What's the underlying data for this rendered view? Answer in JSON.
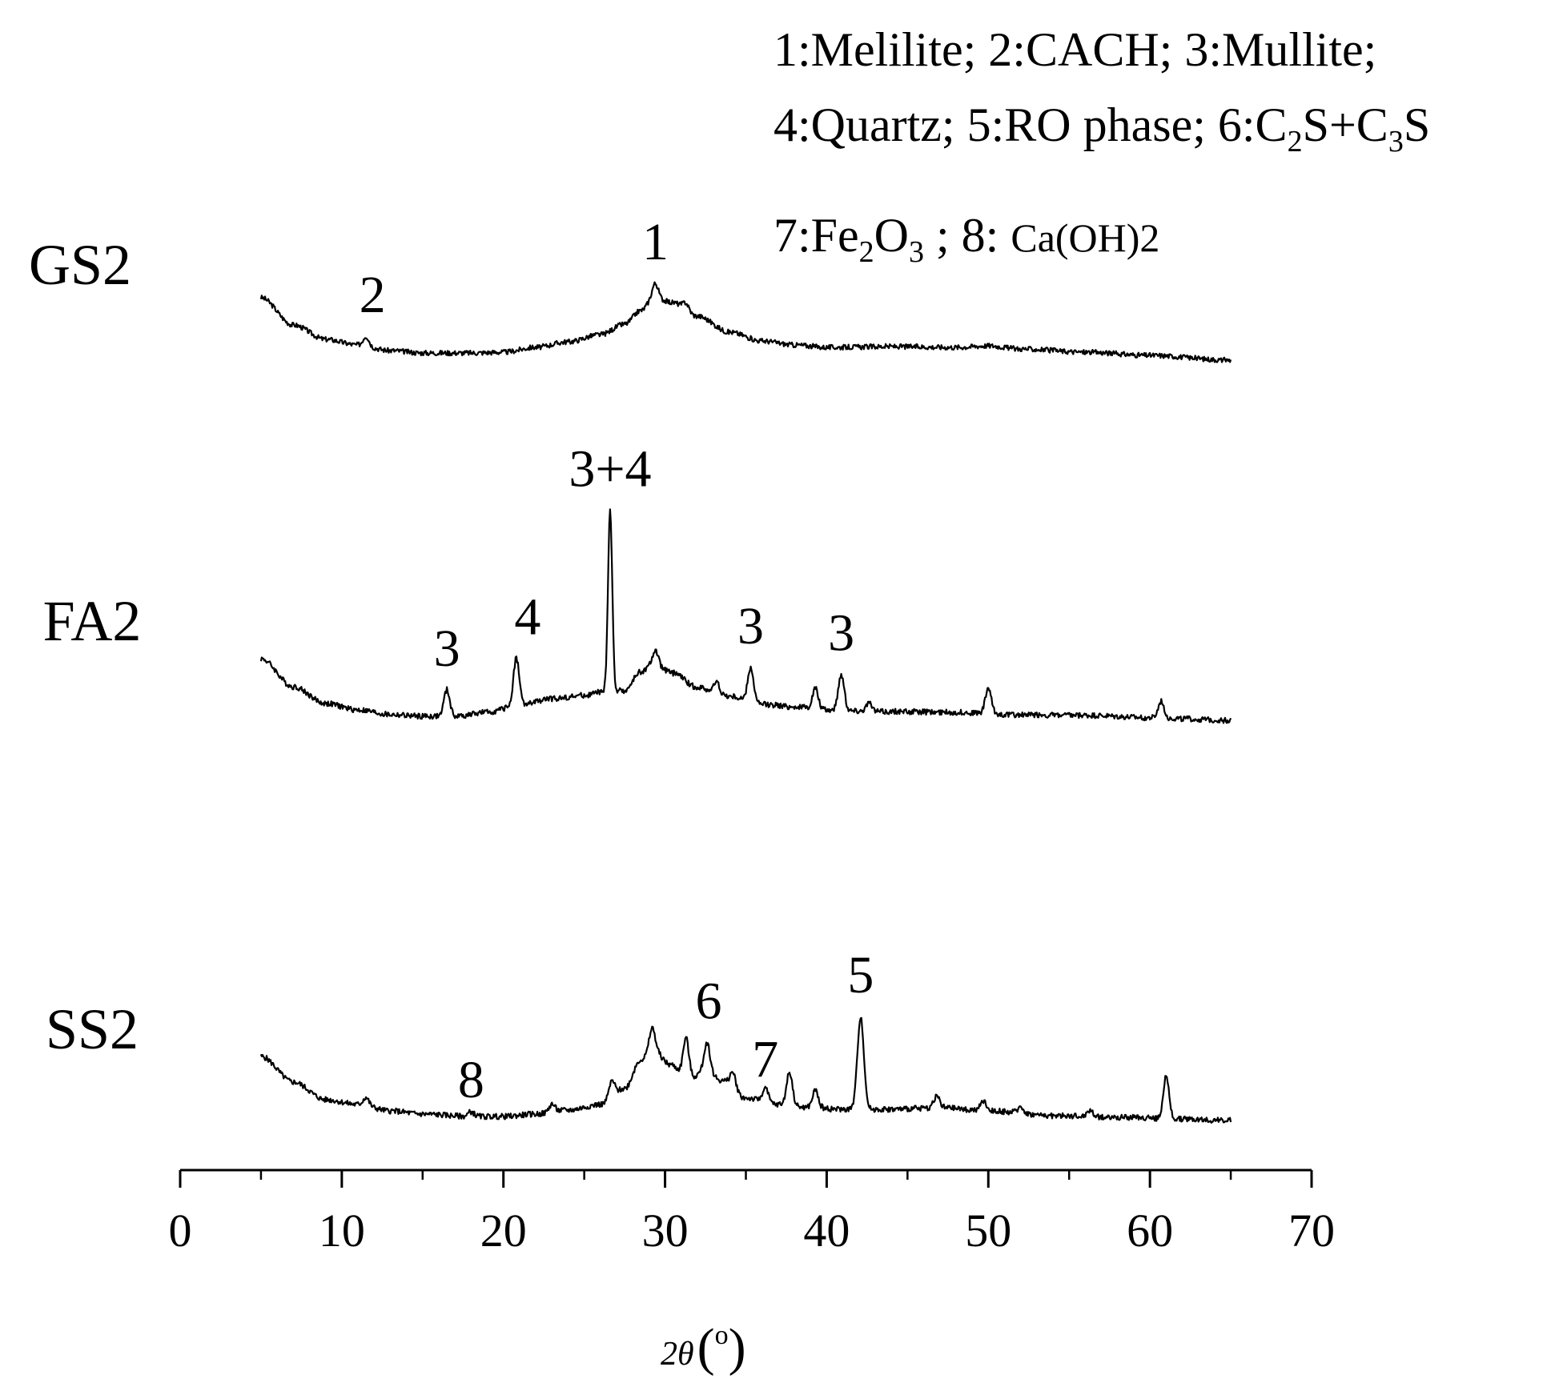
{
  "chart_data": {
    "type": "line",
    "title": "",
    "xlabel": "2θ(°)",
    "xlabel_parts": {
      "two": "2",
      "theta": "θ",
      "unit": "(",
      "degree": "o",
      "close": ")"
    },
    "ylabel": "",
    "xlim": [
      0,
      70
    ],
    "xticks": [
      "0",
      "10",
      "20",
      "30",
      "40",
      "50",
      "60",
      "70"
    ],
    "x_range": [
      5,
      65
    ],
    "y_axis_shown": false,
    "grid": false,
    "legend": {
      "placement": "top-right",
      "lines": [
        [
          {
            "t": "1:Melilite; 2:CACH; 3:Mullite;"
          }
        ],
        [
          {
            "t": "4:Quartz; 5:RO phase; 6:C"
          },
          {
            "t": "2",
            "sub": true
          },
          {
            "t": "S+C"
          },
          {
            "t": "3",
            "sub": true
          },
          {
            "t": "S"
          }
        ],
        [
          {
            "t": "7:Fe"
          },
          {
            "t": "2",
            "sub": true
          },
          {
            "t": "O"
          },
          {
            "t": "3",
            "sub": true
          },
          {
            "t": " ; 8: "
          },
          {
            "t": "Ca(OH)2",
            "small": true
          }
        ]
      ]
    },
    "series": [
      {
        "name": "GS2",
        "baseline": [
          [
            5,
            100
          ],
          [
            7,
            66
          ],
          [
            9,
            48
          ],
          [
            11,
            41
          ],
          [
            13,
            34
          ],
          [
            15,
            31
          ],
          [
            18,
            31
          ],
          [
            20,
            32
          ],
          [
            22,
            38
          ],
          [
            24,
            45
          ],
          [
            26,
            54
          ],
          [
            27.5,
            67
          ],
          [
            28.5,
            84
          ],
          [
            29.3,
            100
          ],
          [
            30.5,
            94
          ],
          [
            32,
            77
          ],
          [
            34,
            57
          ],
          [
            36,
            46
          ],
          [
            38,
            41
          ],
          [
            40,
            38
          ],
          [
            44,
            39
          ],
          [
            48,
            38
          ],
          [
            50,
            40
          ],
          [
            52,
            36
          ],
          [
            56,
            32
          ],
          [
            60,
            28
          ],
          [
            65,
            22
          ]
        ],
        "peaks": [
          {
            "x": 11.5,
            "h": 12,
            "label": "2"
          },
          {
            "x": 29.4,
            "h": 18,
            "label": "1"
          },
          {
            "x": 31.3,
            "h": 9,
            "label": ""
          }
        ],
        "noise": 3.2
      },
      {
        "name": "FA2",
        "baseline": [
          [
            5,
            100
          ],
          [
            7,
            65
          ],
          [
            9,
            44
          ],
          [
            11,
            36
          ],
          [
            13,
            30
          ],
          [
            15,
            28
          ],
          [
            17,
            28
          ],
          [
            19,
            33
          ],
          [
            21,
            42
          ],
          [
            23,
            50
          ],
          [
            25,
            54
          ],
          [
            26,
            58
          ],
          [
            27.5,
            60
          ],
          [
            28.5,
            84
          ],
          [
            29.3,
            92
          ],
          [
            30.5,
            82
          ],
          [
            32,
            64
          ],
          [
            34,
            53
          ],
          [
            36,
            43
          ],
          [
            38,
            40
          ],
          [
            40,
            36
          ],
          [
            44,
            34
          ],
          [
            48,
            33
          ],
          [
            52,
            30
          ],
          [
            56,
            29
          ],
          [
            60,
            26
          ],
          [
            65,
            23
          ]
        ],
        "peaks": [
          {
            "x": 16.5,
            "h": 33,
            "label": "3"
          },
          {
            "x": 20.8,
            "h": 59,
            "label": "4"
          },
          {
            "x": 26.6,
            "h": 227,
            "label": "3+4"
          },
          {
            "x": 29.4,
            "h": 18,
            "label": ""
          },
          {
            "x": 33.2,
            "h": 14,
            "label": ""
          },
          {
            "x": 35.3,
            "h": 43,
            "label": "3"
          },
          {
            "x": 39.3,
            "h": 26,
            "label": ""
          },
          {
            "x": 40.9,
            "h": 45,
            "label": "3"
          },
          {
            "x": 42.6,
            "h": 10,
            "label": ""
          },
          {
            "x": 50.0,
            "h": 32,
            "label": ""
          },
          {
            "x": 60.7,
            "h": 21,
            "label": ""
          }
        ],
        "noise": 3.5
      },
      {
        "name": "SS2",
        "baseline": [
          [
            5,
            100
          ],
          [
            7,
            68
          ],
          [
            9,
            46
          ],
          [
            11,
            40
          ],
          [
            13,
            32
          ],
          [
            15,
            28
          ],
          [
            18,
            25
          ],
          [
            20,
            25
          ],
          [
            22,
            28
          ],
          [
            24,
            33
          ],
          [
            26,
            40
          ],
          [
            27.5,
            60
          ],
          [
            28.5,
            96
          ],
          [
            29.3,
            108
          ],
          [
            30.3,
            90
          ],
          [
            31.5,
            72
          ],
          [
            32.5,
            82
          ],
          [
            33.5,
            70
          ],
          [
            35,
            48
          ],
          [
            37,
            40
          ],
          [
            39,
            36
          ],
          [
            41,
            34
          ],
          [
            44,
            34
          ],
          [
            47,
            36
          ],
          [
            50,
            32
          ],
          [
            54,
            26
          ],
          [
            58,
            24
          ],
          [
            62,
            22
          ],
          [
            65,
            20
          ]
        ],
        "peaks": [
          {
            "x": 11.5,
            "h": 10,
            "label": ""
          },
          {
            "x": 18.0,
            "h": 6,
            "label": "8"
          },
          {
            "x": 23.0,
            "h": 10,
            "label": ""
          },
          {
            "x": 26.7,
            "h": 20,
            "label": ""
          },
          {
            "x": 29.2,
            "h": 28,
            "label": ""
          },
          {
            "x": 31.3,
            "h": 50,
            "label": ""
          },
          {
            "x": 32.6,
            "h": 36,
            "label": "6"
          },
          {
            "x": 34.2,
            "h": 20,
            "label": ""
          },
          {
            "x": 36.2,
            "h": 18,
            "label": "7"
          },
          {
            "x": 37.7,
            "h": 42,
            "label": ""
          },
          {
            "x": 39.3,
            "h": 22,
            "label": ""
          },
          {
            "x": 42.1,
            "h": 116,
            "label": "5"
          },
          {
            "x": 46.8,
            "h": 15,
            "label": ""
          },
          {
            "x": 49.7,
            "h": 12,
            "label": ""
          },
          {
            "x": 52.0,
            "h": 8,
            "label": ""
          },
          {
            "x": 56.3,
            "h": 8,
            "label": ""
          },
          {
            "x": 61.0,
            "h": 52,
            "label": ""
          }
        ],
        "noise": 3.5
      }
    ]
  }
}
